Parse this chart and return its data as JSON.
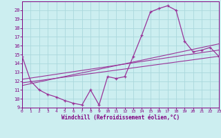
{
  "bg_color": "#cceef0",
  "grid_color": "#aad8dc",
  "line_color": "#993399",
  "marker_color": "#993399",
  "xlabel": "Windchill (Refroidissement éolien,°C)",
  "xlabel_color": "#800080",
  "tick_color": "#800080",
  "ylim": [
    9,
    21
  ],
  "xlim": [
    0,
    23
  ],
  "yticks": [
    9,
    10,
    11,
    12,
    13,
    14,
    15,
    16,
    17,
    18,
    19,
    20
  ],
  "xticks": [
    0,
    1,
    2,
    3,
    4,
    5,
    6,
    7,
    8,
    9,
    10,
    11,
    12,
    13,
    14,
    15,
    16,
    17,
    18,
    19,
    20,
    21,
    22,
    23
  ],
  "series1_x": [
    0,
    1,
    2,
    3,
    4,
    5,
    6,
    7,
    8,
    9,
    10,
    11,
    12,
    13,
    14,
    15,
    16,
    17,
    18,
    19,
    20,
    21,
    22,
    23
  ],
  "series1_y": [
    14.8,
    12.0,
    11.0,
    10.5,
    10.2,
    9.8,
    9.5,
    9.3,
    11.0,
    9.3,
    12.5,
    12.3,
    12.5,
    14.8,
    17.2,
    19.8,
    20.2,
    20.5,
    20.0,
    16.5,
    15.3,
    15.5,
    15.8,
    14.8
  ],
  "series2_x": [
    0,
    23
  ],
  "series2_y": [
    11.8,
    14.8
  ],
  "series3_x": [
    0,
    23
  ],
  "series3_y": [
    12.2,
    15.5
  ],
  "series4_x": [
    0,
    23
  ],
  "series4_y": [
    11.5,
    16.2
  ]
}
